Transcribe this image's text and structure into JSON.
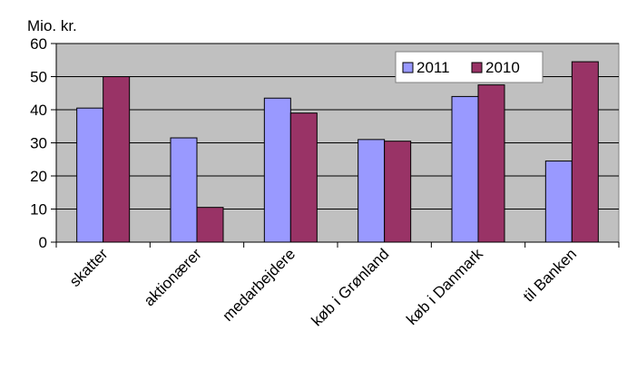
{
  "chart_data": {
    "type": "bar",
    "ylabel": "Mio. kr.",
    "ylim": [
      0,
      60
    ],
    "yticks": [
      "0",
      "10",
      "20",
      "30",
      "40",
      "50",
      "60"
    ],
    "grid": true,
    "legend_position": "top-right",
    "categories": [
      "skatter",
      "aktionærer",
      "medarbejdere",
      "køb i Grønland",
      "køb i Danmark",
      "til Banken"
    ],
    "series": [
      {
        "name": "2011",
        "color": "#9999ff",
        "values": [
          40.5,
          31.5,
          43.5,
          31,
          44,
          24.5
        ]
      },
      {
        "name": "2010",
        "color": "#993366",
        "values": [
          50,
          10.5,
          39,
          30.5,
          47.5,
          54.5
        ]
      }
    ],
    "plot_background": "#c0c0c0"
  }
}
